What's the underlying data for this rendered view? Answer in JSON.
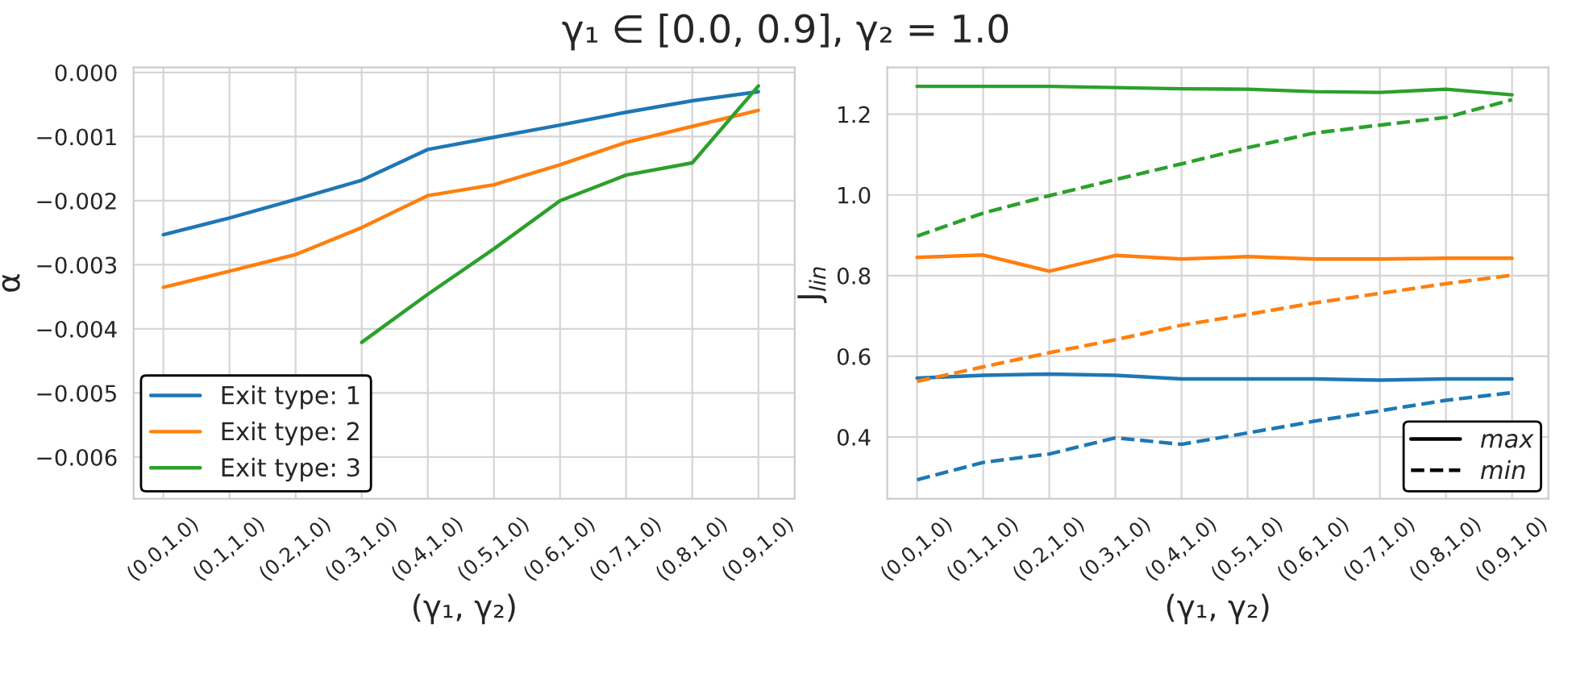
{
  "chart_data": [
    {
      "type": "line",
      "title": "γ₁ ∈ [0.0, 0.9], γ₂ = 1.0",
      "xlabel": "(γ₁, γ₂)",
      "ylabel": "α",
      "categories": [
        "(0.0,1.0)",
        "(0.1,1.0)",
        "(0.2,1.0)",
        "(0.3,1.0)",
        "(0.4,1.0)",
        "(0.5,1.0)",
        "(0.6,1.0)",
        "(0.7,1.0)",
        "(0.8,1.0)",
        "(0.9,1.0)"
      ],
      "series": [
        {
          "name": "Exit type: 1",
          "color": "#1f77b4",
          "values": [
            -0.00253,
            -0.00227,
            -0.00198,
            -0.00168,
            -0.0012,
            -0.00101,
            -0.00082,
            -0.00062,
            -0.00044,
            -0.0003
          ]
        },
        {
          "name": "Exit type: 2",
          "color": "#ff7f0e",
          "values": [
            -0.00335,
            -0.0031,
            -0.00284,
            -0.00242,
            -0.00192,
            -0.00175,
            -0.00144,
            -0.00109,
            -0.00084,
            -0.00059
          ]
        },
        {
          "name": "Exit type: 3",
          "color": "#2ca02c",
          "values": [
            null,
            null,
            null,
            -0.00421,
            -0.00346,
            -0.00275,
            -0.002,
            -0.0016,
            -0.00141,
            -0.00021
          ]
        }
      ],
      "ylim": [
        -0.00665,
        8e-05
      ],
      "yticks": [
        {
          "value": -0.006,
          "label": "−0.006"
        },
        {
          "value": -0.005,
          "label": "−0.005"
        },
        {
          "value": -0.004,
          "label": "−0.004"
        },
        {
          "value": -0.003,
          "label": "−0.003"
        },
        {
          "value": -0.002,
          "label": "−0.002"
        },
        {
          "value": -0.001,
          "label": "−0.001"
        },
        {
          "value": 0,
          "label": "0.000"
        }
      ],
      "grid": true,
      "legend": "bottom left",
      "line_style": "solid",
      "marker": "none"
    },
    {
      "type": "line",
      "xlabel": "(γ₁, γ₂)",
      "ylabel": "J$_{lin}$",
      "categories": [
        "(0.0,1.0)",
        "(0.1,1.0)",
        "(0.2,1.0)",
        "(0.3,1.0)",
        "(0.4,1.0)",
        "(0.5,1.0)",
        "(0.6,1.0)",
        "(0.7,1.0)",
        "(0.8,1.0)",
        "(0.9,1.0)"
      ],
      "series": [
        {
          "color": "#1f77b4",
          "line_style": "solid",
          "values": [
            0.546,
            0.553,
            0.556,
            0.553,
            0.544,
            0.544,
            0.544,
            0.541,
            0.544,
            0.544
          ]
        },
        {
          "color": "#1f77b4",
          "line_style": "dashed",
          "values": [
            0.294,
            0.337,
            0.358,
            0.398,
            0.382,
            0.41,
            0.439,
            0.465,
            0.491,
            0.51
          ]
        },
        {
          "color": "#ff7f0e",
          "line_style": "solid",
          "values": [
            0.845,
            0.851,
            0.811,
            0.85,
            0.841,
            0.847,
            0.841,
            0.841,
            0.843,
            0.843
          ]
        },
        {
          "color": "#ff7f0e",
          "line_style": "dashed",
          "values": [
            0.538,
            0.574,
            0.609,
            0.641,
            0.677,
            0.704,
            0.732,
            0.756,
            0.78,
            0.801
          ]
        },
        {
          "color": "#2ca02c",
          "line_style": "solid",
          "values": [
            1.269,
            1.269,
            1.269,
            1.266,
            1.263,
            1.262,
            1.256,
            1.254,
            1.262,
            1.248
          ]
        },
        {
          "color": "#2ca02c",
          "line_style": "dashed",
          "values": [
            0.898,
            0.955,
            0.998,
            1.038,
            1.077,
            1.117,
            1.153,
            1.173,
            1.192,
            1.236
          ]
        }
      ],
      "ylim": [
        0.247,
        1.316
      ],
      "yticks": [
        0.4,
        0.6,
        0.8,
        {
          "value": 1.0,
          "label": "1.0"
        },
        1.2
      ],
      "annotations": [
        "max",
        "min"
      ],
      "grid": true,
      "legend": "bottom right",
      "marker": "none"
    }
  ]
}
